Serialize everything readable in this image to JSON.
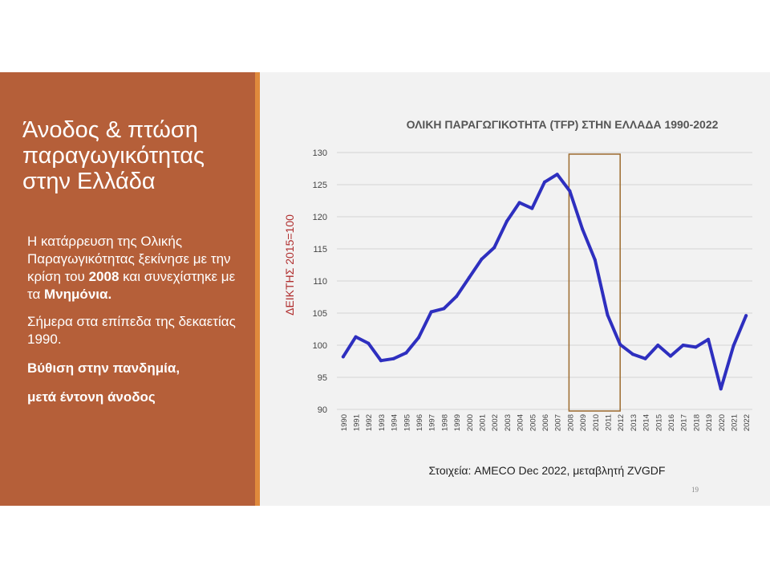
{
  "slide": {
    "title_lines": [
      "Άνοδος & πτώση",
      "παραγωγικότητας",
      "στην Ελλάδα"
    ],
    "paragraph1": {
      "part1": "Η κατάρρευση της Ολικής Παραγωγικότητας ξεκίνησε με την κρίση του ",
      "bold1": "2008",
      "part2": " και συνεχίστηκε με τα ",
      "bold2": "Μνημόνια."
    },
    "paragraph2": "Σήμερα στα επίπεδα της δεκαετίας 1990.",
    "bold_line1": "Βύθιση στην πανδημία,",
    "bold_line2": "μετά έντονη άνοδος",
    "source": "Στοιχεία: AMECO Dec 2022, μεταβλητή ZVGDF",
    "page_number": "19"
  },
  "colors": {
    "left_panel": "#b55f39",
    "accent": "#e08a3c",
    "line": "#2e2fbf",
    "highlight_box": "#9c6b2e",
    "ylabel": "#b02e2e"
  },
  "chart_data": {
    "type": "line",
    "title": "ΟΛΙΚΗ ΠΑΡΑΓΩΓΙΚΟΤΗΤΑ (TFP) ΣΤΗΝ ΕΛΛΑΔΑ 1990-2022",
    "xlabel": "",
    "ylabel": "ΔΕΙΚΤΗΣ 2015=100",
    "ylim": [
      90,
      130
    ],
    "yticks": [
      90,
      95,
      100,
      105,
      110,
      115,
      120,
      125,
      130
    ],
    "grid": true,
    "x": [
      "1990",
      "1991",
      "1992",
      "1993",
      "1994",
      "1995",
      "1996",
      "1997",
      "1998",
      "1999",
      "2000",
      "2001",
      "2002",
      "2003",
      "2004",
      "2005",
      "2006",
      "2007",
      "2008",
      "2009",
      "2010",
      "2011",
      "2012",
      "2013",
      "2014",
      "2015",
      "2016",
      "2017",
      "2018",
      "2019",
      "2020",
      "2021",
      "2022"
    ],
    "series": [
      {
        "values": [
          98.2,
          101.3,
          100.3,
          97.6,
          97.9,
          98.8,
          101.2,
          105.2,
          105.7,
          107.6,
          110.5,
          113.4,
          115.2,
          119.3,
          122.2,
          121.3,
          125.4,
          126.6,
          124.0,
          118.1,
          113.3,
          104.7,
          100.1,
          98.6,
          97.9,
          100.0,
          98.3,
          100.0,
          99.7,
          100.9,
          93.2,
          99.9,
          104.6
        ]
      }
    ],
    "highlight_range": [
      "2008",
      "2012"
    ]
  }
}
